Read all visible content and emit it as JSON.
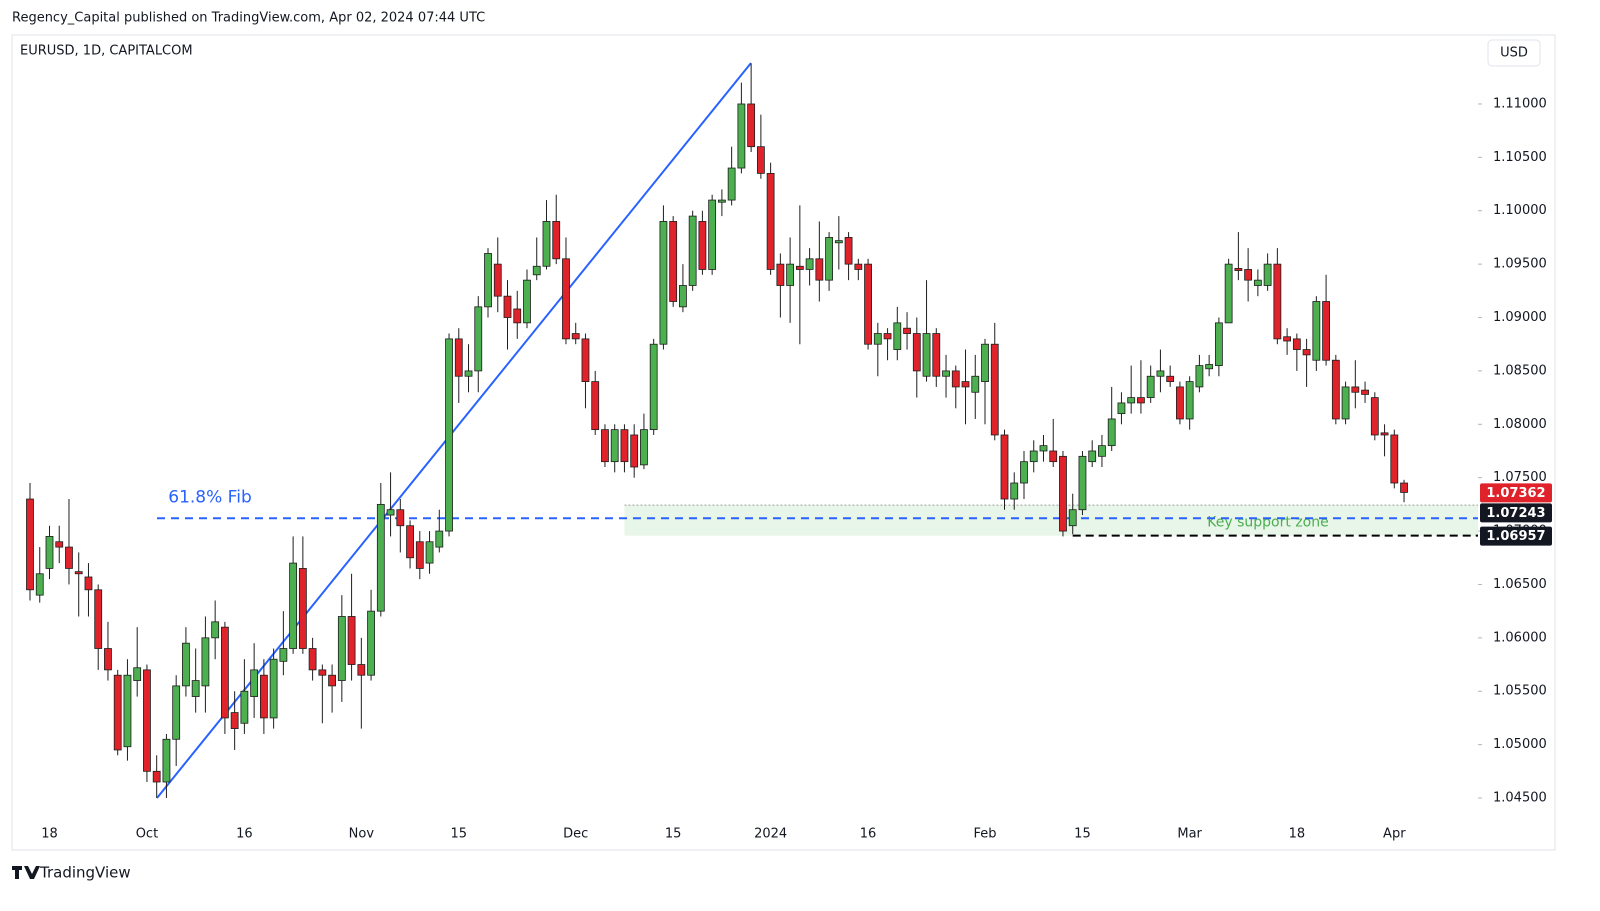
{
  "header": {
    "publisher": "Regency_Capital published on TradingView.com, Apr 02, 2024 07:44 UTC",
    "brand": "TradingView"
  },
  "chart_data": {
    "type": "candlestick",
    "title": "EURUSD, 1D, CAPITALCOM",
    "currency": "USD",
    "up_color": "#4caf50",
    "down_color": "#e0232b",
    "border_color": "#1e1e1e",
    "categories": [
      null,
      null,
      "18",
      null,
      null,
      null,
      null,
      null,
      null,
      null,
      null,
      null,
      "Oct",
      null,
      null,
      null,
      null,
      null,
      null,
      null,
      null,
      null,
      "16",
      null,
      null,
      null,
      null,
      null,
      null,
      null,
      null,
      null,
      null,
      null,
      "Nov",
      null,
      null,
      null,
      null,
      null,
      null,
      null,
      null,
      null,
      "15",
      null,
      null,
      null,
      null,
      null,
      null,
      null,
      null,
      null,
      null,
      null,
      "Dec",
      null,
      null,
      null,
      null,
      null,
      null,
      null,
      null,
      null,
      "15",
      null,
      null,
      null,
      null,
      null,
      null,
      null,
      null,
      null,
      "2024",
      null,
      null,
      null,
      null,
      null,
      null,
      null,
      null,
      null,
      "16",
      null,
      null,
      null,
      null,
      null,
      null,
      null,
      null,
      null,
      null,
      null,
      "Feb",
      null,
      null,
      null,
      null,
      null,
      null,
      null,
      null,
      null,
      "15",
      null,
      null,
      null,
      null,
      null,
      null,
      null,
      null,
      null,
      null,
      "Mar",
      null,
      null,
      null,
      null,
      null,
      null,
      null,
      null,
      null,
      null,
      "18",
      null,
      null,
      null,
      null,
      null,
      null,
      null,
      null,
      null,
      "Apr",
      null
    ],
    "open": [
      1.073,
      1.064,
      1.0665,
      1.069,
      1.0685,
      1.0662,
      1.0657,
      1.0645,
      1.059,
      1.0565,
      1.0498,
      1.056,
      1.057,
      1.0475,
      1.0465,
      1.0505,
      1.0555,
      1.0545,
      1.0555,
      1.06,
      1.061,
      1.053,
      1.052,
      1.0545,
      1.0565,
      1.0525,
      1.0578,
      1.059,
      1.0665,
      1.059,
      1.057,
      1.0565,
      1.056,
      1.062,
      1.0575,
      1.0565,
      1.0625,
      1.0715,
      1.072,
      1.0705,
      1.069,
      1.067,
      1.0685,
      1.07,
      1.088,
      1.0845,
      1.085,
      1.091,
      1.095,
      1.092,
      1.0908,
      1.0895,
      1.094,
      1.0948,
      1.099,
      1.0955,
      1.0885,
      1.088,
      1.084,
      1.0795,
      1.0765,
      1.0795,
      1.079,
      1.0762,
      1.0795,
      1.0875,
      1.099,
      1.091,
      1.093,
      1.099,
      1.0945,
      1.1008,
      1.101,
      1.104,
      1.11,
      1.106,
      1.1035,
      1.095,
      1.093,
      1.0948,
      1.0945,
      1.0955,
      1.0935,
      1.097,
      1.0975,
      1.095,
      1.095,
      1.0875,
      1.0885,
      1.087,
      1.089,
      1.0885,
      1.0845,
      1.0885,
      1.0845,
      1.085,
      1.084,
      1.083,
      1.084,
      1.0875,
      1.079,
      1.073,
      1.0745,
      1.0765,
      1.0775,
      1.0775,
      1.077,
      1.0705,
      1.072,
      1.0765,
      1.077,
      1.078,
      1.081,
      1.082,
      1.0825,
      1.0825,
      1.0845,
      1.0845,
      1.0835,
      1.0805,
      1.0835,
      1.0852,
      1.0855,
      1.0895,
      1.0946,
      1.0945,
      1.093,
      1.093,
      1.095,
      1.0882,
      1.088,
      1.087,
      1.086,
      1.0915,
      1.086,
      1.0805,
      1.0835,
      1.0832,
      1.0825,
      1.0792,
      1.079,
      1.0745
    ],
    "high": [
      1.0745,
      1.0685,
      1.0705,
      1.0705,
      1.073,
      1.068,
      1.067,
      1.065,
      1.0615,
      1.057,
      1.058,
      1.061,
      1.0575,
      1.049,
      1.051,
      1.0565,
      1.061,
      1.059,
      1.062,
      1.0635,
      1.0615,
      1.055,
      1.058,
      1.0595,
      1.058,
      1.059,
      1.0625,
      1.0695,
      1.0695,
      1.06,
      1.0575,
      1.0575,
      1.064,
      1.066,
      1.06,
      1.0645,
      1.0745,
      1.0755,
      1.073,
      1.071,
      1.07,
      1.07,
      1.072,
      1.0885,
      1.089,
      1.0875,
      1.092,
      1.0965,
      1.0975,
      1.0935,
      1.0925,
      1.0945,
      1.0975,
      1.101,
      1.1015,
      1.0975,
      1.0895,
      1.0885,
      1.085,
      1.08,
      1.08,
      1.08,
      1.08,
      1.081,
      1.088,
      1.1005,
      1.0995,
      1.095,
      1.1,
      1.1,
      1.1015,
      1.102,
      1.106,
      1.112,
      1.1138,
      1.109,
      1.1045,
      1.096,
      1.0975,
      1.1005,
      1.0965,
      1.099,
      1.098,
      1.0995,
      1.098,
      1.0955,
      1.0955,
      1.0895,
      1.089,
      1.091,
      1.0905,
      1.09,
      1.0935,
      1.089,
      1.0865,
      1.0855,
      1.087,
      1.0865,
      1.088,
      1.0895,
      1.0795,
      1.0755,
      1.0775,
      1.0785,
      1.079,
      1.0805,
      1.0775,
      1.0735,
      1.0775,
      1.0785,
      1.079,
      1.0835,
      1.083,
      1.0855,
      1.086,
      1.0855,
      1.087,
      1.0855,
      1.084,
      1.0845,
      1.0865,
      1.0865,
      1.09,
      1.0955,
      1.098,
      1.0965,
      1.0945,
      1.096,
      1.0965,
      1.089,
      1.0885,
      1.088,
      1.092,
      1.094,
      1.0865,
      1.084,
      1.086,
      1.084,
      1.083,
      1.08,
      1.0795,
      1.0748
    ],
    "low": [
      1.0635,
      1.0633,
      1.0655,
      1.067,
      1.065,
      1.062,
      1.062,
      1.057,
      1.056,
      1.049,
      1.0485,
      1.0545,
      1.0465,
      1.045,
      1.045,
      1.048,
      1.0545,
      1.053,
      1.053,
      1.058,
      1.051,
      1.0495,
      1.051,
      1.0525,
      1.051,
      1.0515,
      1.0565,
      1.0585,
      1.0585,
      1.056,
      1.052,
      1.053,
      1.054,
      1.056,
      1.0515,
      1.056,
      1.062,
      1.0695,
      1.068,
      1.0665,
      1.0655,
      1.066,
      1.068,
      1.0695,
      1.082,
      1.083,
      1.083,
      1.09,
      1.0905,
      1.087,
      1.088,
      1.089,
      1.0935,
      1.0945,
      1.095,
      1.0875,
      1.0875,
      1.0815,
      1.079,
      1.076,
      1.0755,
      1.0755,
      1.075,
      1.0758,
      1.079,
      1.087,
      1.091,
      1.0905,
      1.0925,
      1.094,
      1.094,
      1.0995,
      1.1005,
      1.1035,
      1.1055,
      1.103,
      1.094,
      1.09,
      1.0895,
      1.0875,
      1.093,
      1.0915,
      1.0925,
      1.0945,
      1.0935,
      1.0935,
      1.087,
      1.0845,
      1.086,
      1.086,
      1.087,
      1.0825,
      1.084,
      1.0835,
      1.0825,
      1.0815,
      1.08,
      1.0805,
      1.08,
      1.0785,
      1.072,
      1.072,
      1.073,
      1.0755,
      1.0765,
      1.076,
      1.0695,
      1.0697,
      1.0715,
      1.076,
      1.076,
      1.0775,
      1.08,
      1.081,
      1.081,
      1.082,
      1.083,
      1.0835,
      1.08,
      1.0795,
      1.083,
      1.0845,
      1.0845,
      1.0895,
      1.0935,
      1.0915,
      1.092,
      1.0925,
      1.0875,
      1.0865,
      1.085,
      1.0835,
      1.085,
      1.0855,
      1.08,
      1.08,
      1.0815,
      1.082,
      1.0785,
      1.077,
      1.074,
      1.0727
    ],
    "close": [
      1.0645,
      1.066,
      1.0695,
      1.0685,
      1.0665,
      1.066,
      1.0645,
      1.059,
      1.057,
      1.0495,
      1.0565,
      1.0572,
      1.0475,
      1.0465,
      1.0505,
      1.0555,
      1.0595,
      1.056,
      1.06,
      1.0615,
      1.0525,
      1.0515,
      1.055,
      1.057,
      1.0525,
      1.058,
      1.059,
      1.067,
      1.059,
      1.057,
      1.0565,
      1.0555,
      1.062,
      1.0575,
      1.0565,
      1.0625,
      1.0725,
      1.072,
      1.0705,
      1.0675,
      1.0665,
      1.069,
      1.07,
      1.088,
      1.0845,
      1.085,
      1.091,
      1.096,
      1.092,
      1.09,
      1.0895,
      1.0935,
      1.0948,
      1.099,
      1.0955,
      1.088,
      1.088,
      1.084,
      1.0795,
      1.0765,
      1.0795,
      1.0765,
      1.076,
      1.0795,
      1.0875,
      1.099,
      1.0915,
      1.093,
      1.0995,
      1.0945,
      1.101,
      1.101,
      1.104,
      1.11,
      1.106,
      1.1035,
      1.0945,
      1.093,
      1.095,
      1.0945,
      1.0955,
      1.0935,
      1.0975,
      1.0972,
      1.095,
      1.0945,
      1.0875,
      1.0885,
      1.088,
      1.0895,
      1.0885,
      1.085,
      1.0885,
      1.0845,
      1.085,
      1.0835,
      1.0835,
      1.0845,
      1.0875,
      1.079,
      1.073,
      1.0745,
      1.0765,
      1.0775,
      1.078,
      1.0765,
      1.07,
      1.072,
      1.077,
      1.0775,
      1.078,
      1.0805,
      1.082,
      1.0825,
      1.082,
      1.0845,
      1.085,
      1.084,
      1.0805,
      1.084,
      1.0855,
      1.0856,
      1.0895,
      1.095,
      1.0944,
      1.0935,
      1.0935,
      1.095,
      1.088,
      1.0878,
      1.087,
      1.0865,
      1.0915,
      1.086,
      1.0805,
      1.0835,
      1.083,
      1.0828,
      1.079,
      1.079,
      1.0745,
      1.07362
    ],
    "ylim": [
      1.04013,
      1.11646
    ],
    "yticks": [
      {
        "value": 1.045,
        "label": "1.04500"
      },
      {
        "value": 1.05,
        "label": "1.05000"
      },
      {
        "value": 1.055,
        "label": "1.05500"
      },
      {
        "value": 1.06,
        "label": "1.06000"
      },
      {
        "value": 1.065,
        "label": "1.06500"
      },
      {
        "value": 1.07,
        "label": "1.07000"
      },
      {
        "value": 1.075,
        "label": "1.07500"
      },
      {
        "value": 1.08,
        "label": "1.08000"
      },
      {
        "value": 1.085,
        "label": "1.08500"
      },
      {
        "value": 1.09,
        "label": "1.09000"
      },
      {
        "value": 1.095,
        "label": "1.09500"
      },
      {
        "value": 1.1,
        "label": "1.10000"
      },
      {
        "value": 1.105,
        "label": "1.10500"
      },
      {
        "value": 1.11,
        "label": "1.11000"
      }
    ],
    "grid": false,
    "price_labels": [
      {
        "value": 1.07362,
        "label": "1.07362",
        "color": "#e0232b"
      },
      {
        "value": 1.07243,
        "label": "1.07243",
        "color": "#131722"
      },
      {
        "value": 1.06957,
        "label": "1.06957",
        "color": "#131722"
      }
    ],
    "fib_level": {
      "label": "61.8% Fib",
      "value": 1.0712,
      "color": "#2962ff"
    },
    "support_zone": {
      "label": "Key support zone",
      "color": "#4caf50"
    }
  }
}
